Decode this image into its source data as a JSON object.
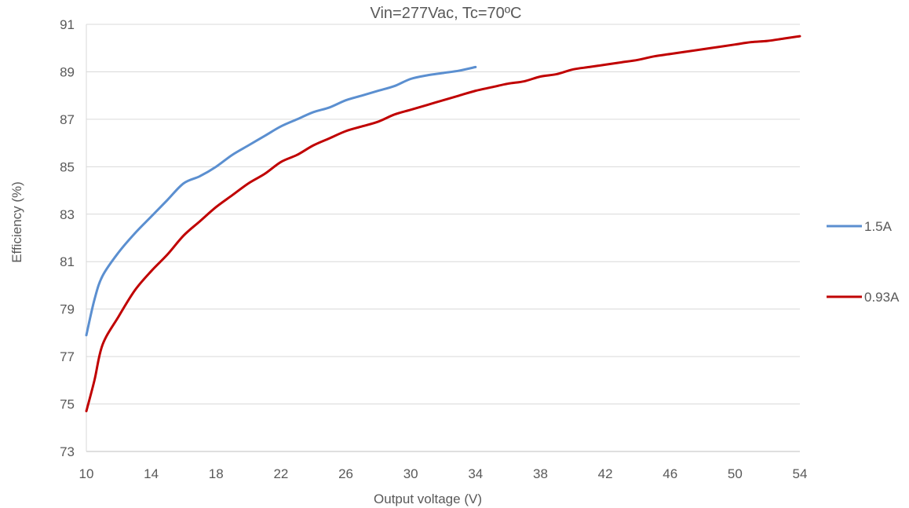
{
  "chart_data": {
    "type": "line",
    "title": "Vin=277Vac, Tc=70ºC",
    "xlabel": "Output voltage (V)",
    "ylabel": "Efficiency (%)",
    "xlim": [
      10,
      54
    ],
    "ylim": [
      73,
      91
    ],
    "x_ticks": [
      "10",
      "14",
      "18",
      "22",
      "26",
      "30",
      "34",
      "38",
      "42",
      "46",
      "50",
      "54"
    ],
    "y_ticks": [
      "73",
      "75",
      "77",
      "79",
      "81",
      "83",
      "85",
      "87",
      "89",
      "91"
    ],
    "grid": "horizontal",
    "legend_position": "right",
    "series": [
      {
        "name": "1.5A",
        "color": "#5b8fd0",
        "points": [
          [
            10,
            77.9
          ],
          [
            10.5,
            79.4
          ],
          [
            11,
            80.4
          ],
          [
            12,
            81.4
          ],
          [
            13,
            82.2
          ],
          [
            14,
            82.9
          ],
          [
            15,
            83.6
          ],
          [
            16,
            84.3
          ],
          [
            17,
            84.6
          ],
          [
            18,
            85.0
          ],
          [
            19,
            85.5
          ],
          [
            20,
            85.9
          ],
          [
            21,
            86.3
          ],
          [
            22,
            86.7
          ],
          [
            23,
            87.0
          ],
          [
            24,
            87.3
          ],
          [
            25,
            87.5
          ],
          [
            26,
            87.8
          ],
          [
            27,
            88.0
          ],
          [
            28,
            88.2
          ],
          [
            29,
            88.4
          ],
          [
            30,
            88.7
          ],
          [
            31,
            88.85
          ],
          [
            32,
            88.95
          ],
          [
            33,
            89.05
          ],
          [
            34,
            89.2
          ]
        ]
      },
      {
        "name": "0.93A",
        "color": "#c00000",
        "points": [
          [
            10,
            74.7
          ],
          [
            10.5,
            76.0
          ],
          [
            11,
            77.5
          ],
          [
            12,
            78.7
          ],
          [
            13,
            79.8
          ],
          [
            14,
            80.6
          ],
          [
            15,
            81.3
          ],
          [
            16,
            82.1
          ],
          [
            17,
            82.7
          ],
          [
            18,
            83.3
          ],
          [
            19,
            83.8
          ],
          [
            20,
            84.3
          ],
          [
            21,
            84.7
          ],
          [
            22,
            85.2
          ],
          [
            23,
            85.5
          ],
          [
            24,
            85.9
          ],
          [
            25,
            86.2
          ],
          [
            26,
            86.5
          ],
          [
            27,
            86.7
          ],
          [
            28,
            86.9
          ],
          [
            29,
            87.2
          ],
          [
            30,
            87.4
          ],
          [
            31,
            87.6
          ],
          [
            32,
            87.8
          ],
          [
            33,
            88.0
          ],
          [
            34,
            88.2
          ],
          [
            35,
            88.35
          ],
          [
            36,
            88.5
          ],
          [
            37,
            88.6
          ],
          [
            38,
            88.8
          ],
          [
            39,
            88.9
          ],
          [
            40,
            89.1
          ],
          [
            41,
            89.2
          ],
          [
            42,
            89.3
          ],
          [
            43,
            89.4
          ],
          [
            44,
            89.5
          ],
          [
            45,
            89.65
          ],
          [
            46,
            89.75
          ],
          [
            47,
            89.85
          ],
          [
            48,
            89.95
          ],
          [
            49,
            90.05
          ],
          [
            50,
            90.15
          ],
          [
            51,
            90.25
          ],
          [
            52,
            90.3
          ],
          [
            53,
            90.4
          ],
          [
            54,
            90.5
          ]
        ]
      }
    ]
  }
}
